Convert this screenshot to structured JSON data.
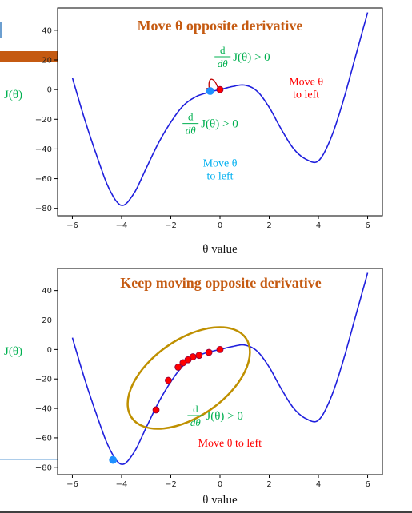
{
  "chart_data": [
    {
      "type": "line",
      "title": "Move θ opposite derivative",
      "xlabel": "θ value",
      "ylabel": "J(θ)",
      "xlim": [
        -6.6,
        6.6
      ],
      "ylim": [
        -85,
        55
      ],
      "xticks": [
        -6,
        -4,
        -2,
        0,
        2,
        4,
        6
      ],
      "yticks": [
        40,
        20,
        0,
        -20,
        -40,
        -60,
        -80
      ],
      "xtick_labels": [
        "−6",
        "−4",
        "−2",
        "0",
        "2",
        "4",
        "6"
      ],
      "ytick_labels": [
        "40",
        "20",
        "0",
        "−20",
        "−40",
        "−60",
        "−80"
      ],
      "curve": {
        "x": [
          -6,
          -5.5,
          -5,
          -4.5,
          -4,
          -3.5,
          -3,
          -2.5,
          -2,
          -1.5,
          -1,
          -0.5,
          0,
          0.5,
          1,
          1.5,
          2,
          2.5,
          3,
          3.5,
          4,
          4.5,
          5,
          5.5,
          6
        ],
        "y": [
          8,
          -20,
          -45,
          -67,
          -78,
          -70,
          -53,
          -36,
          -22,
          -11,
          -5,
          -2,
          0,
          2,
          3,
          -1,
          -12,
          -27,
          -40,
          -47,
          -48,
          -33,
          -8,
          22,
          52
        ]
      },
      "points": [
        {
          "x": 0,
          "y": 0,
          "color": "#ff0000"
        },
        {
          "x": -0.4,
          "y": -1,
          "color": "#1e90ff"
        }
      ],
      "annotations": [
        {
          "id": "deriv-top",
          "num": "d",
          "den": "dθ",
          "expr": "J(θ) > 0",
          "color": "#00b050",
          "at": [
            1.6,
            20
          ]
        },
        {
          "id": "move-top",
          "text": [
            "Move θ",
            "to left"
          ],
          "color": "#ff0000",
          "at": [
            3.5,
            3
          ]
        },
        {
          "id": "deriv-mid",
          "num": "d",
          "den": "dθ",
          "expr": "J(θ) > 0",
          "color": "#00b050",
          "at": [
            0.3,
            -25
          ]
        },
        {
          "id": "move-mid",
          "text": [
            "Move θ",
            "to left"
          ],
          "color": "#00b0f0",
          "at": [
            0,
            -52
          ]
        }
      ]
    },
    {
      "type": "line",
      "title": "Keep moving opposite derivative",
      "xlabel": "θ value",
      "ylabel": "J(θ)",
      "xlim": [
        -6.6,
        6.6
      ],
      "ylim": [
        -85,
        55
      ],
      "xticks": [
        -6,
        -4,
        -2,
        0,
        2,
        4,
        6
      ],
      "yticks": [
        40,
        20,
        0,
        -20,
        -40,
        -60,
        -80
      ],
      "xtick_labels": [
        "−6",
        "−4",
        "−2",
        "0",
        "2",
        "4",
        "6"
      ],
      "ytick_labels": [
        "40",
        "20",
        "0",
        "−20",
        "−40",
        "−60",
        "−80"
      ],
      "curve": {
        "x": [
          -6,
          -5.5,
          -5,
          -4.5,
          -4,
          -3.5,
          -3,
          -2.5,
          -2,
          -1.5,
          -1,
          -0.5,
          0,
          0.5,
          1,
          1.5,
          2,
          2.5,
          3,
          3.5,
          4,
          4.5,
          5,
          5.5,
          6
        ],
        "y": [
          8,
          -20,
          -45,
          -67,
          -78,
          -70,
          -53,
          -36,
          -22,
          -11,
          -5,
          -2,
          0,
          2,
          3,
          -1,
          -12,
          -27,
          -40,
          -47,
          -48,
          -33,
          -8,
          22,
          52
        ]
      },
      "points": [
        {
          "x": 0,
          "y": 0,
          "color": "#ff0000"
        },
        {
          "x": -0.45,
          "y": -2,
          "color": "#ff0000"
        },
        {
          "x": -0.85,
          "y": -4,
          "color": "#ff0000"
        },
        {
          "x": -1.1,
          "y": -5,
          "color": "#ff0000"
        },
        {
          "x": -1.3,
          "y": -7,
          "color": "#ff0000"
        },
        {
          "x": -1.5,
          "y": -9,
          "color": "#ff0000"
        },
        {
          "x": -1.7,
          "y": -12,
          "color": "#ff0000"
        },
        {
          "x": -2.1,
          "y": -21,
          "color": "#ff0000"
        },
        {
          "x": -2.6,
          "y": -41,
          "color": "#ff0000"
        },
        {
          "x": -4.35,
          "y": -75,
          "color": "#1e90ff"
        }
      ],
      "annotations": [
        {
          "id": "deriv-bot",
          "num": "d",
          "den": "dθ",
          "expr": "J(θ) > 0",
          "color": "#00b050",
          "at": [
            0.5,
            -47
          ]
        },
        {
          "id": "move-bot",
          "text": [
            "Move θ to left"
          ],
          "color": "#ff0000",
          "at": [
            0.4,
            -66
          ]
        }
      ]
    }
  ]
}
